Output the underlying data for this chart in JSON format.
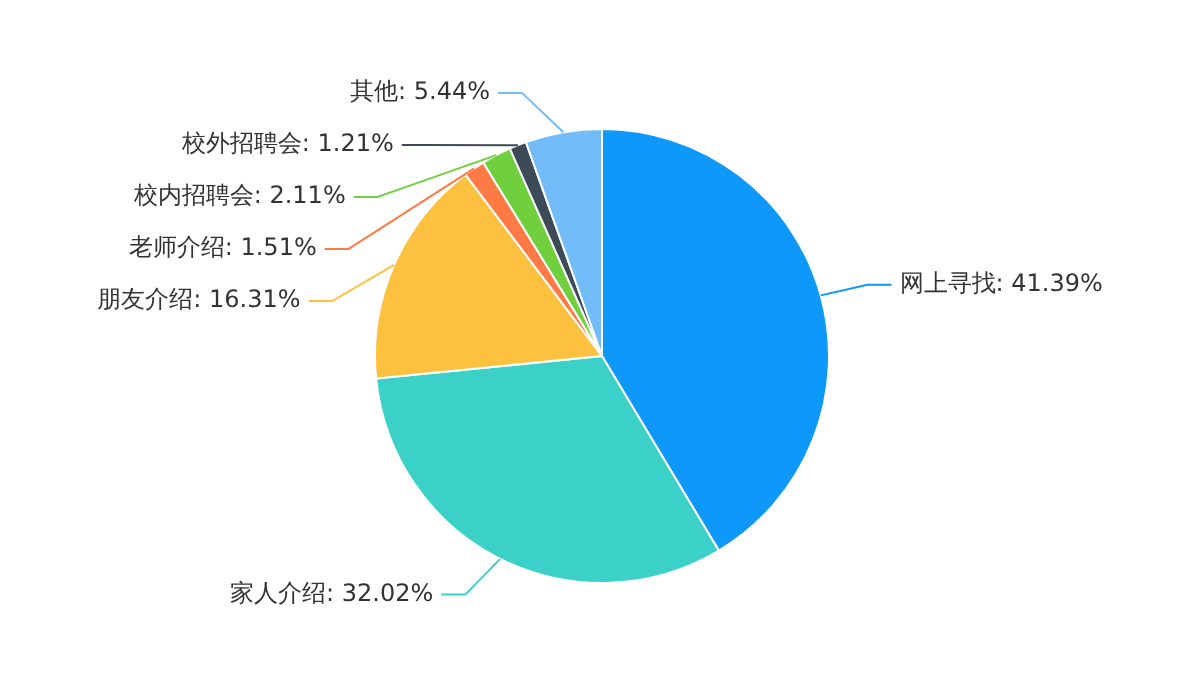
{
  "chart_data": {
    "type": "pie",
    "categories": [
      "网上寻找",
      "家人介绍",
      "朋友介绍",
      "老师介绍",
      "校内招聘会",
      "校外招聘会",
      "其他"
    ],
    "values": [
      41.39,
      32.02,
      16.31,
      1.51,
      2.11,
      1.21,
      5.44
    ],
    "value_labels": [
      "41.39%",
      "32.02%",
      "16.31%",
      "1.51%",
      "2.11%",
      "1.21%",
      "5.44%"
    ],
    "colors": [
      "#0d98fa",
      "#3bd0c8",
      "#fec13f",
      "#ff7a45",
      "#6fcf3c",
      "#3d4a57",
      "#72bdf9"
    ],
    "legend": false
  }
}
